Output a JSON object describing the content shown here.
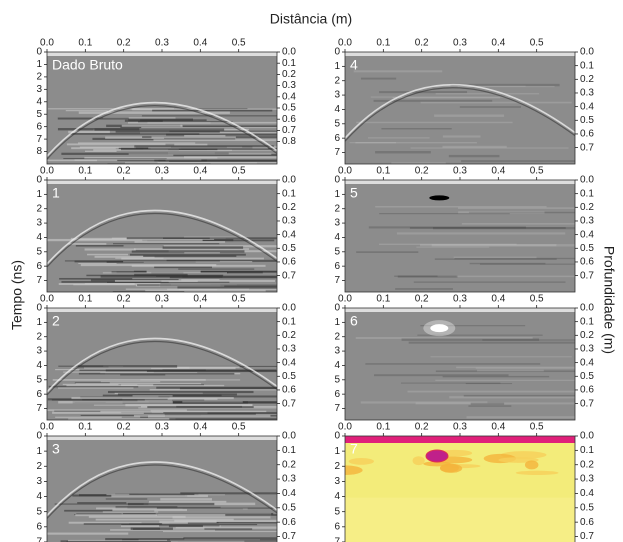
{
  "figure": {
    "title": "Distância (m)",
    "ylabel": "Tempo (ns)",
    "y2label": "Profundidade (m)"
  },
  "chart_data": [
    {
      "type": "radargram",
      "label": "Dado Bruto",
      "colormap": "gray",
      "xlim": [
        0,
        0.6
      ],
      "xticks": [
        {
          "value": 0,
          "label": "0.0"
        },
        0.1,
        0.2,
        0.3,
        0.4,
        0.5
      ],
      "ylim": [
        0,
        9
      ],
      "yticks": [
        0,
        1,
        2,
        3,
        4,
        5,
        6,
        7,
        8
      ],
      "y2lim": [
        0,
        1.0
      ],
      "y2ticks": [
        {
          "value": 0,
          "label": "0.0"
        },
        0.1,
        0.2,
        0.3,
        0.4,
        0.5,
        0.6,
        0.7,
        0.8
      ]
    },
    {
      "type": "radargram",
      "label": "1",
      "colormap": "gray",
      "xlim": [
        0,
        0.6
      ],
      "xticks": [
        {
          "value": 0,
          "label": "0.0"
        },
        0.1,
        0.2,
        0.3,
        0.4,
        0.5
      ],
      "ylim": [
        0,
        7.8
      ],
      "yticks": [
        0,
        1,
        2,
        3,
        4,
        5,
        6,
        7
      ],
      "y2lim": [
        0,
        0.82
      ],
      "y2ticks": [
        {
          "value": 0,
          "label": "0.0"
        },
        0.1,
        0.2,
        0.3,
        0.4,
        0.5,
        0.6,
        0.7
      ]
    },
    {
      "type": "radargram",
      "label": "2",
      "colormap": "gray",
      "xlim": [
        0,
        0.6
      ],
      "xticks": [
        {
          "value": 0,
          "label": "0.0"
        },
        0.1,
        0.2,
        0.3,
        0.4,
        0.5
      ],
      "ylim": [
        0,
        7.8
      ],
      "yticks": [
        0,
        1,
        2,
        3,
        4,
        5,
        6,
        7
      ],
      "y2lim": [
        0,
        0.82
      ],
      "y2ticks": [
        {
          "value": 0,
          "label": "0.0"
        },
        0.1,
        0.2,
        0.3,
        0.4,
        0.5,
        0.6,
        0.7
      ]
    },
    {
      "type": "radargram",
      "label": "3",
      "colormap": "gray",
      "xlim": [
        0,
        0.6
      ],
      "xticks": [
        {
          "value": 0,
          "label": "0.0"
        },
        0.1,
        0.2,
        0.3,
        0.4,
        0.5
      ],
      "ylim": [
        0,
        7.4
      ],
      "yticks": [
        0,
        1,
        2,
        3,
        4,
        5,
        6,
        7
      ],
      "y2lim": [
        0,
        0.78
      ],
      "y2ticks": [
        {
          "value": 0,
          "label": "0.0"
        },
        0.1,
        0.2,
        0.3,
        0.4,
        0.5,
        0.6,
        0.7
      ]
    },
    {
      "type": "radargram",
      "label": "4",
      "colormap": "gray",
      "xlim": [
        0,
        0.6
      ],
      "xticks": [
        {
          "value": 0,
          "label": "0.0"
        },
        0.1,
        0.2,
        0.3,
        0.4,
        0.5
      ],
      "ylim": [
        0,
        7.8
      ],
      "yticks": [
        0,
        1,
        2,
        3,
        4,
        5,
        6,
        7
      ],
      "y2lim": [
        0,
        0.82
      ],
      "y2ticks": [
        {
          "value": 0,
          "label": "0.0"
        },
        0.1,
        0.2,
        0.3,
        0.4,
        0.5,
        0.6,
        0.7
      ]
    },
    {
      "type": "radargram",
      "label": "5",
      "colormap": "gray",
      "xlim": [
        0,
        0.6
      ],
      "xticks": [
        {
          "value": 0,
          "label": "0.0"
        },
        0.1,
        0.2,
        0.3,
        0.4,
        0.5
      ],
      "ylim": [
        0,
        7.8
      ],
      "yticks": [
        0,
        1,
        2,
        3,
        4,
        5,
        6,
        7
      ],
      "y2lim": [
        0,
        0.82
      ],
      "y2ticks": [
        {
          "value": 0,
          "label": "0.0"
        },
        0.1,
        0.2,
        0.3,
        0.4,
        0.5,
        0.6,
        0.7
      ]
    },
    {
      "type": "radargram",
      "label": "6",
      "colormap": "gray",
      "xlim": [
        0,
        0.6
      ],
      "xticks": [
        {
          "value": 0,
          "label": "0.0"
        },
        0.1,
        0.2,
        0.3,
        0.4,
        0.5
      ],
      "ylim": [
        0,
        7.8
      ],
      "yticks": [
        0,
        1,
        2,
        3,
        4,
        5,
        6,
        7
      ],
      "y2lim": [
        0,
        0.82
      ],
      "y2ticks": [
        {
          "value": 0,
          "label": "0.0"
        },
        0.1,
        0.2,
        0.3,
        0.4,
        0.5,
        0.6,
        0.7
      ]
    },
    {
      "type": "radargram",
      "label": "7",
      "colormap": "heat",
      "xlim": [
        0,
        0.6
      ],
      "xticks": [
        {
          "value": 0,
          "label": "0.0"
        },
        0.1,
        0.2,
        0.3,
        0.4,
        0.5
      ],
      "ylim": [
        0,
        7.4
      ],
      "yticks": [
        0,
        1,
        2,
        3,
        4,
        5,
        6,
        7
      ],
      "y2lim": [
        0,
        0.78
      ],
      "y2ticks": [
        {
          "value": 0,
          "label": "0.0"
        },
        0.1,
        0.2,
        0.3,
        0.4,
        0.5,
        0.6,
        0.7
      ]
    }
  ]
}
